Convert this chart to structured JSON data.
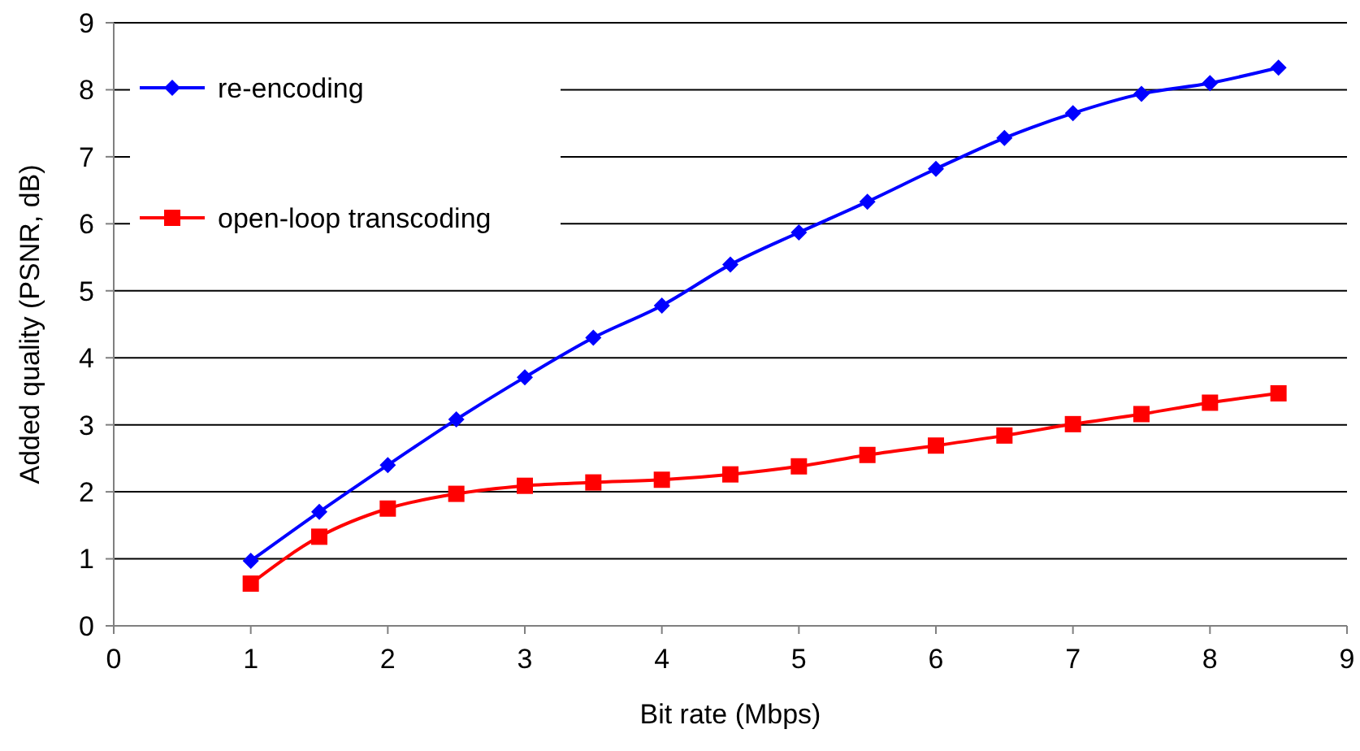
{
  "chart_data": {
    "type": "line",
    "xlabel": "Bit rate (Mbps)",
    "ylabel": "Added quality (PSNR, dB)",
    "x": [
      1,
      1.5,
      2,
      2.5,
      3,
      3.5,
      4,
      4.5,
      5,
      5.5,
      6,
      6.5,
      7,
      7.5,
      8,
      8.5
    ],
    "series": [
      {
        "name": "re-encoding",
        "color": "#0000ff",
        "marker": "diamond",
        "values": [
          0.97,
          1.7,
          2.4,
          3.08,
          3.71,
          4.3,
          4.78,
          5.39,
          5.87,
          6.33,
          6.82,
          7.28,
          7.65,
          7.94,
          8.1,
          8.33
        ]
      },
      {
        "name": "open-loop transcoding",
        "color": "#ff0000",
        "marker": "square",
        "values": [
          0.63,
          1.33,
          1.75,
          1.97,
          2.09,
          2.14,
          2.18,
          2.26,
          2.38,
          2.55,
          2.69,
          2.84,
          3.01,
          3.16,
          3.33,
          3.47
        ]
      }
    ],
    "xlim": [
      0,
      9
    ],
    "xticks": [
      0,
      1,
      2,
      3,
      4,
      5,
      6,
      7,
      8,
      9
    ],
    "ylim": [
      0,
      9
    ],
    "yticks": [
      0,
      1,
      2,
      3,
      4,
      5,
      6,
      7,
      8,
      9
    ],
    "grid": "y",
    "legend": "top left"
  }
}
